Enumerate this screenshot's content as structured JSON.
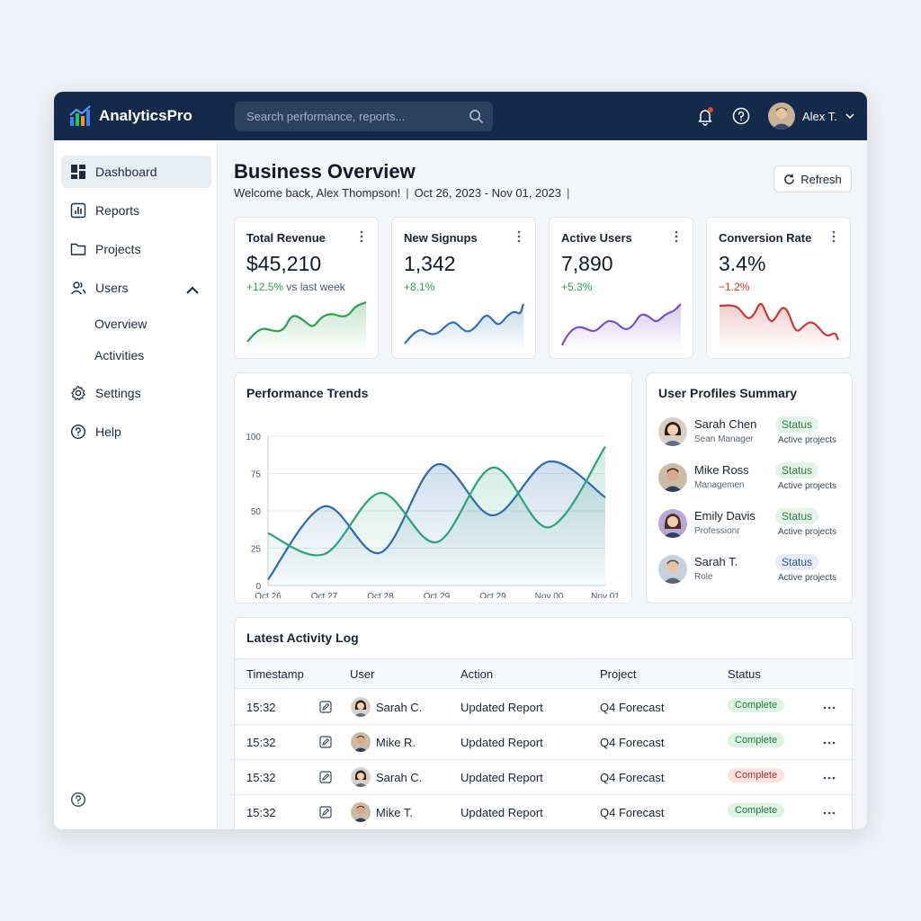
{
  "app": {
    "name": "AnalyticsPro"
  },
  "header": {
    "search_placeholder": "Search performance, reports...",
    "user_name": "Alex T."
  },
  "sidebar": {
    "items": [
      {
        "label": "Dashboard",
        "icon": "dashboard-icon",
        "active": true
      },
      {
        "label": "Reports",
        "icon": "bar-chart-icon"
      },
      {
        "label": "Projects",
        "icon": "folder-icon"
      },
      {
        "label": "Users",
        "icon": "users-icon",
        "expanded": true
      },
      {
        "label": "Settings",
        "icon": "gear-icon"
      },
      {
        "label": "Help",
        "icon": "help-circle-icon"
      }
    ],
    "sub_items": [
      "Overview",
      "Activities"
    ]
  },
  "page": {
    "title": "Business Overview",
    "welcome": "Welcome back, Alex Thompson!",
    "date_range": "Oct 26, 2023 - Nov 01, 2023",
    "refresh_label": "Refresh"
  },
  "kpis": [
    {
      "title": "Total Revenue",
      "value": "$45,210",
      "delta": "+12.5%",
      "delta_suffix": " vs last week",
      "trend": "pos",
      "color": "#2e9e4f"
    },
    {
      "title": "New Signups",
      "value": "1,342",
      "delta": "+8.1%",
      "delta_suffix": "",
      "trend": "pos",
      "color": "#2f6fb5"
    },
    {
      "title": "Active Users",
      "value": "7,890",
      "delta": "+5.3%",
      "delta_suffix": "",
      "trend": "pos",
      "color": "#7b4fc4"
    },
    {
      "title": "Conversion Rate",
      "value": "3.4%",
      "delta": "−1.2%",
      "delta_suffix": "",
      "trend": "neg",
      "color": "#c8383a"
    }
  ],
  "performance": {
    "title": "Performance Trends",
    "chart_data": {
      "type": "line",
      "categories": [
        "Oct 26",
        "Oct 27",
        "Oct 28",
        "Oct 29",
        "Oct 29",
        "Nov 00",
        "Nov 01"
      ],
      "ylim": [
        0,
        100
      ],
      "yticks": [
        0,
        25,
        50,
        75,
        100
      ],
      "grid": true,
      "series": [
        {
          "color": "#2b6cb0",
          "x": [
            0,
            1,
            2,
            3,
            4,
            5,
            6
          ],
          "values": [
            4,
            53,
            22,
            81,
            47,
            83,
            59
          ]
        },
        {
          "color": "#2aa37a",
          "x": [
            0,
            1,
            2,
            3,
            4,
            5,
            6
          ],
          "values": [
            35,
            21,
            62,
            29,
            79,
            39,
            93
          ]
        }
      ]
    }
  },
  "profiles": {
    "title": "User Profiles Summary",
    "items": [
      {
        "name": "Sarah Chen",
        "role": "Sean Manager",
        "badge": "Status",
        "badge_style": "green",
        "sub": "Active projects"
      },
      {
        "name": "Mike Ross",
        "role": "Managemen",
        "badge": "Status",
        "badge_style": "green",
        "sub": "Active projects"
      },
      {
        "name": "Emily Davis",
        "role": "Professionr",
        "badge": "Status",
        "badge_style": "green",
        "sub": "Active projects"
      },
      {
        "name": "Sarah T.",
        "role": "Role",
        "badge": "Status",
        "badge_style": "blue",
        "sub": "Active projects"
      }
    ]
  },
  "log": {
    "title": "Latest Activity Log",
    "columns": [
      "Timestamp",
      "User",
      "Action",
      "Project",
      "Status"
    ],
    "rows": [
      {
        "time": "15:32",
        "user": "Sarah C.",
        "action": "Updated Report",
        "project": "Q4 Forecast",
        "status": "Complete",
        "status_style": "ok"
      },
      {
        "time": "15:32",
        "user": "Mike R.",
        "action": "Updated Report",
        "project": "Q4 Forecast",
        "status": "Complete",
        "status_style": "ok"
      },
      {
        "time": "15:32",
        "user": "Sarah C.",
        "action": "Updated Report",
        "project": "Q4 Forecast",
        "status": "Complete",
        "status_style": "bad"
      },
      {
        "time": "15:32",
        "user": "Mike T.",
        "action": "Updated Report",
        "project": "Q4 Forecast",
        "status": "Complete",
        "status_style": "ok"
      }
    ]
  }
}
